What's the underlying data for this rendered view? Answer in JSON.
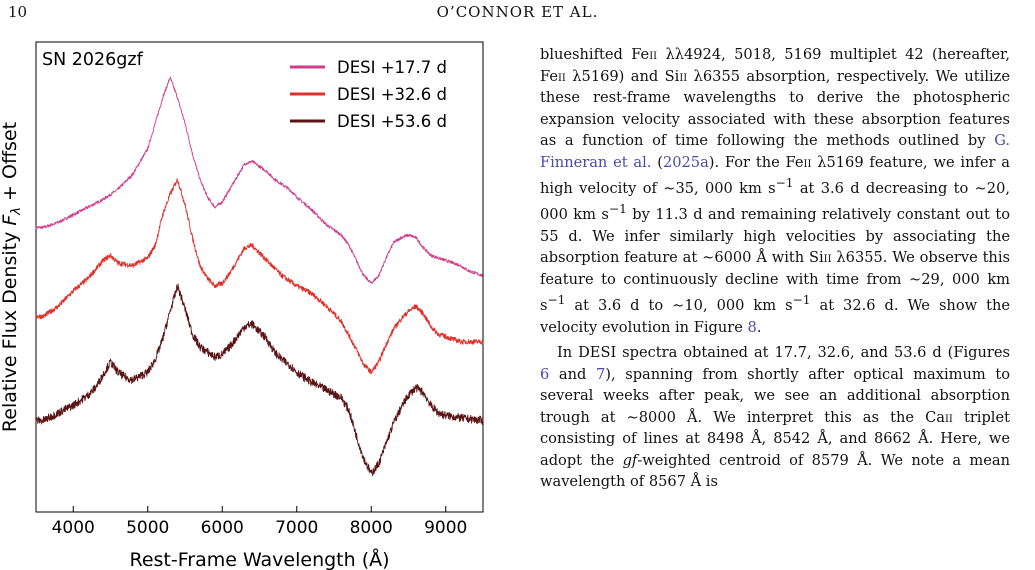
{
  "header": {
    "page_number": "10",
    "running_head": "O’CONNOR ET AL."
  },
  "chart_data": {
    "type": "line",
    "title": "SN 2026gzf",
    "xlabel": "Rest-Frame Wavelength (Å)",
    "ylabel": "Relative Flux Density Fλ + Offset",
    "xlim": [
      3500,
      9500
    ],
    "x_ticks": [
      4000,
      5000,
      6000,
      7000,
      8000,
      9000
    ],
    "legend_position": "top-right",
    "series": [
      {
        "name": "DESI +17.7 d",
        "color": "#d23b8a",
        "noise": 0.06,
        "x": [
          3600,
          3800,
          4000,
          4200,
          4400,
          4600,
          4800,
          5000,
          5100,
          5200,
          5300,
          5400,
          5500,
          5600,
          5700,
          5800,
          5900,
          6000,
          6100,
          6200,
          6300,
          6400,
          6500,
          6600,
          6700,
          6800,
          6900,
          7000,
          7200,
          7400,
          7600,
          7700,
          7800,
          7900,
          8000,
          8100,
          8200,
          8300,
          8400,
          8500,
          8600,
          8700,
          8800,
          8900,
          9000,
          9100,
          9200,
          9300,
          9500
        ],
        "y": [
          9.7,
          9.9,
          10.2,
          10.5,
          10.8,
          11.2,
          11.8,
          12.8,
          13.8,
          14.8,
          15.6,
          14.8,
          13.8,
          12.6,
          11.6,
          10.9,
          10.5,
          10.7,
          11.2,
          11.7,
          12.2,
          12.3,
          12.1,
          11.9,
          11.6,
          11.4,
          11.2,
          10.9,
          10.4,
          9.8,
          9.4,
          9.0,
          8.4,
          7.8,
          7.5,
          7.8,
          8.5,
          9.1,
          9.3,
          9.4,
          9.3,
          8.9,
          8.6,
          8.5,
          8.4,
          8.3,
          8.2,
          8.0,
          7.8
        ]
      },
      {
        "name": "DESI +32.6 d",
        "color": "#e0302a",
        "noise": 0.1,
        "x": [
          3600,
          3800,
          4000,
          4200,
          4400,
          4500,
          4600,
          4800,
          5000,
          5100,
          5200,
          5300,
          5400,
          5500,
          5600,
          5700,
          5800,
          5900,
          6000,
          6100,
          6200,
          6300,
          6400,
          6500,
          6600,
          6700,
          6800,
          6900,
          7000,
          7200,
          7400,
          7600,
          7800,
          7900,
          8000,
          8100,
          8200,
          8300,
          8400,
          8500,
          8600,
          8700,
          8800,
          8900,
          9000,
          9100,
          9200,
          9300,
          9500
        ],
        "y": [
          6.2,
          6.6,
          7.2,
          7.7,
          8.4,
          8.6,
          8.3,
          8.2,
          8.5,
          9.0,
          10.2,
          11.0,
          11.6,
          10.6,
          9.3,
          8.2,
          7.7,
          7.4,
          7.5,
          7.9,
          8.4,
          8.9,
          9.0,
          8.7,
          8.4,
          8.1,
          7.8,
          7.6,
          7.4,
          7.1,
          6.6,
          6.0,
          4.9,
          4.3,
          4.0,
          4.4,
          5.1,
          5.7,
          6.1,
          6.4,
          6.6,
          6.3,
          5.8,
          5.5,
          5.4,
          5.3,
          5.2,
          5.2,
          5.2
        ]
      },
      {
        "name": "DESI +53.6 d",
        "color": "#5a1414",
        "noise": 0.16,
        "x": [
          3600,
          3800,
          4000,
          4200,
          4300,
          4400,
          4500,
          4600,
          4700,
          4800,
          5000,
          5100,
          5200,
          5300,
          5400,
          5500,
          5600,
          5700,
          5800,
          5900,
          6000,
          6100,
          6200,
          6300,
          6400,
          6500,
          6600,
          6700,
          6800,
          6900,
          7000,
          7200,
          7400,
          7600,
          7700,
          7800,
          7900,
          8000,
          8100,
          8200,
          8300,
          8400,
          8500,
          8600,
          8700,
          8800,
          8900,
          9000,
          9200,
          9500
        ],
        "y": [
          2.1,
          2.4,
          2.7,
          3.1,
          3.4,
          3.9,
          4.4,
          4.0,
          3.8,
          3.7,
          4.0,
          4.5,
          5.3,
          6.4,
          7.4,
          6.5,
          5.5,
          5.0,
          4.8,
          4.6,
          4.7,
          5.0,
          5.4,
          5.8,
          5.9,
          5.6,
          5.3,
          4.8,
          4.5,
          4.3,
          4.0,
          3.6,
          3.3,
          3.0,
          2.5,
          1.5,
          0.6,
          0.0,
          0.4,
          1.2,
          2.0,
          2.6,
          3.1,
          3.4,
          3.2,
          2.7,
          2.4,
          2.3,
          2.2,
          2.1
        ]
      }
    ]
  },
  "body": {
    "para1": {
      "t1": "blueshifted Fe",
      "t2": "ii",
      "t3": " λλ4924, 5018, 5169 multiplet 42 (hereafter, Fe",
      "t4": "ii",
      "t5": " λ5169) and Si",
      "t6": "ii",
      "t7": " λ6355 absorption, respectively. We utilize these rest-frame wavelengths to derive the photospheric expansion velocity associated with these absorption features as a function of time following the methods outlined by ",
      "cite_author": "G. Finneran et al.",
      "t8": " (",
      "cite_year": "2025a",
      "t9": "). For the Fe",
      "t10": "ii",
      "t11": " λ5169 feature, we infer a high velocity of ∼35, 000 km s",
      "t12": "−1",
      "t13": " at 3.6 d decreasing to ∼20, 000 km s",
      "t14": "−1",
      "t15": " by 11.3 d and remaining relatively constant out to 55 d. We infer similarly high velocities by associating the absorption feature at ∼6000 Å with Si",
      "t16": "ii",
      "t17": " λ6355. We observe this feature to continuously decline with time from ∼29, 000 km s",
      "t18": "−1",
      "t19": " at 3.6 d to ∼10, 000 km s",
      "t20": "−1",
      "t21": " at 32.6 d. We show the velocity evolution in Figure ",
      "fig8": "8",
      "t22": "."
    },
    "para2": {
      "t1": "In DESI spectra obtained at 17.7, 32.6, and 53.6 d (Figures ",
      "fig6": "6",
      "t2": " and ",
      "fig7": "7",
      "t3": "), spanning from shortly after optical maximum to several weeks after peak, we see an additional absorption trough at ∼8000 Å. We interpret this as the Ca",
      "t4": "ii",
      "t5": " triplet consisting of lines at 8498 Å, 8542 Å, and 8662 Å. Here, we adopt the ",
      "t6": "gf",
      "t7": "-weighted centroid of 8579 Å. We note a mean wavelength of 8567 Å is"
    }
  }
}
